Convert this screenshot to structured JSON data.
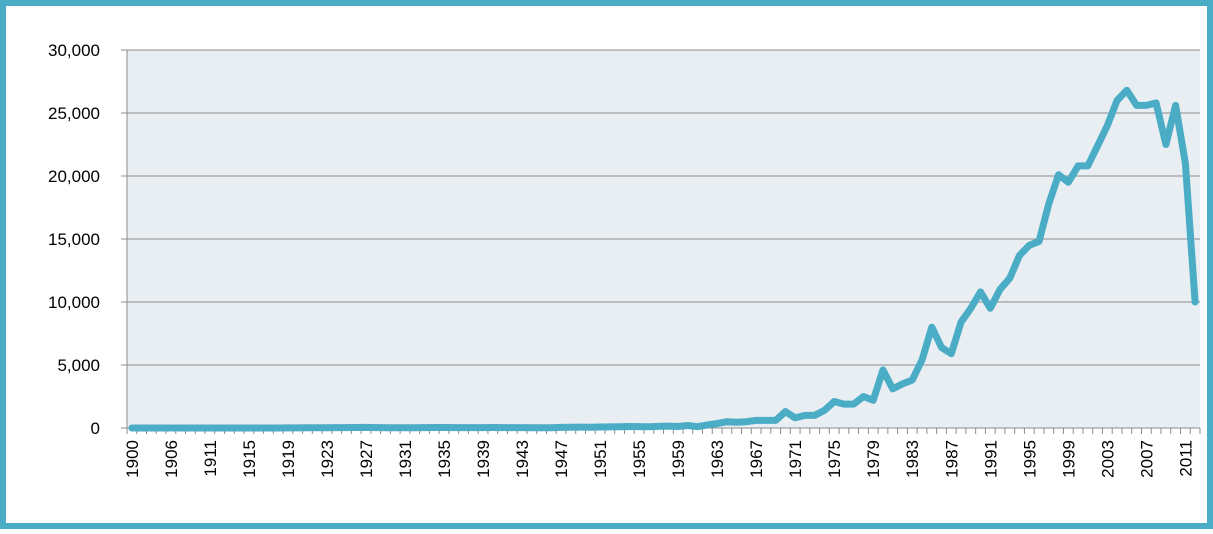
{
  "chart_data": {
    "type": "line",
    "categories": [
      "1900",
      null,
      null,
      null,
      "1906",
      null,
      null,
      null,
      "1911",
      null,
      null,
      null,
      "1915",
      null,
      null,
      null,
      "1919",
      null,
      null,
      null,
      "1923",
      null,
      null,
      null,
      "1927",
      null,
      null,
      null,
      "1931",
      null,
      null,
      null,
      "1935",
      null,
      null,
      null,
      "1939",
      null,
      null,
      null,
      "1943",
      null,
      null,
      null,
      "1947",
      null,
      null,
      null,
      "1951",
      null,
      null,
      null,
      "1955",
      null,
      null,
      null,
      "1959",
      null,
      null,
      null,
      "1963",
      null,
      null,
      null,
      "1967",
      null,
      null,
      null,
      "1971",
      null,
      null,
      null,
      "1975",
      null,
      null,
      null,
      "1979",
      null,
      null,
      null,
      "1983",
      null,
      null,
      null,
      "1987",
      null,
      null,
      null,
      "1991",
      null,
      null,
      null,
      "1995",
      null,
      null,
      null,
      "1999",
      null,
      null,
      null,
      "2003",
      null,
      null,
      null,
      "2007",
      null,
      null,
      null,
      "2011",
      null
    ],
    "series": [
      {
        "color": "#4bacc6",
        "values": [
          0,
          0,
          0,
          0,
          0,
          0,
          0,
          0,
          0,
          0,
          0,
          0,
          0,
          0,
          0,
          0,
          10,
          10,
          20,
          20,
          20,
          30,
          30,
          40,
          50,
          30,
          20,
          20,
          20,
          20,
          30,
          40,
          40,
          30,
          30,
          30,
          30,
          40,
          30,
          30,
          30,
          20,
          20,
          20,
          50,
          60,
          70,
          60,
          80,
          90,
          100,
          120,
          110,
          100,
          130,
          150,
          120,
          200,
          100,
          250,
          350,
          500,
          450,
          500,
          600,
          600,
          600,
          1300,
          800,
          1000,
          1000,
          1400,
          2100,
          1900,
          1900,
          2500,
          2200,
          4600,
          3100,
          3500,
          3800,
          5400,
          8000,
          6400,
          5900,
          8400,
          9500,
          10800,
          9500,
          11000,
          11900,
          13700,
          14500,
          14800,
          17800,
          20100,
          19500,
          20800,
          20800,
          22400,
          24000,
          26000,
          26800,
          25600,
          25600,
          25800,
          22500,
          25600,
          21000,
          10000
        ]
      }
    ],
    "ylim": [
      0,
      30000
    ],
    "yticks": [
      0,
      {
        "value": 5000,
        "label": "5,000"
      },
      {
        "value": 10000,
        "label": "10,000"
      },
      {
        "value": 15000,
        "label": "15,000"
      },
      {
        "value": 20000,
        "label": "20,000"
      },
      {
        "value": 25000,
        "label": "25,000"
      },
      {
        "value": 30000,
        "label": "30,000"
      }
    ],
    "grid": true
  }
}
